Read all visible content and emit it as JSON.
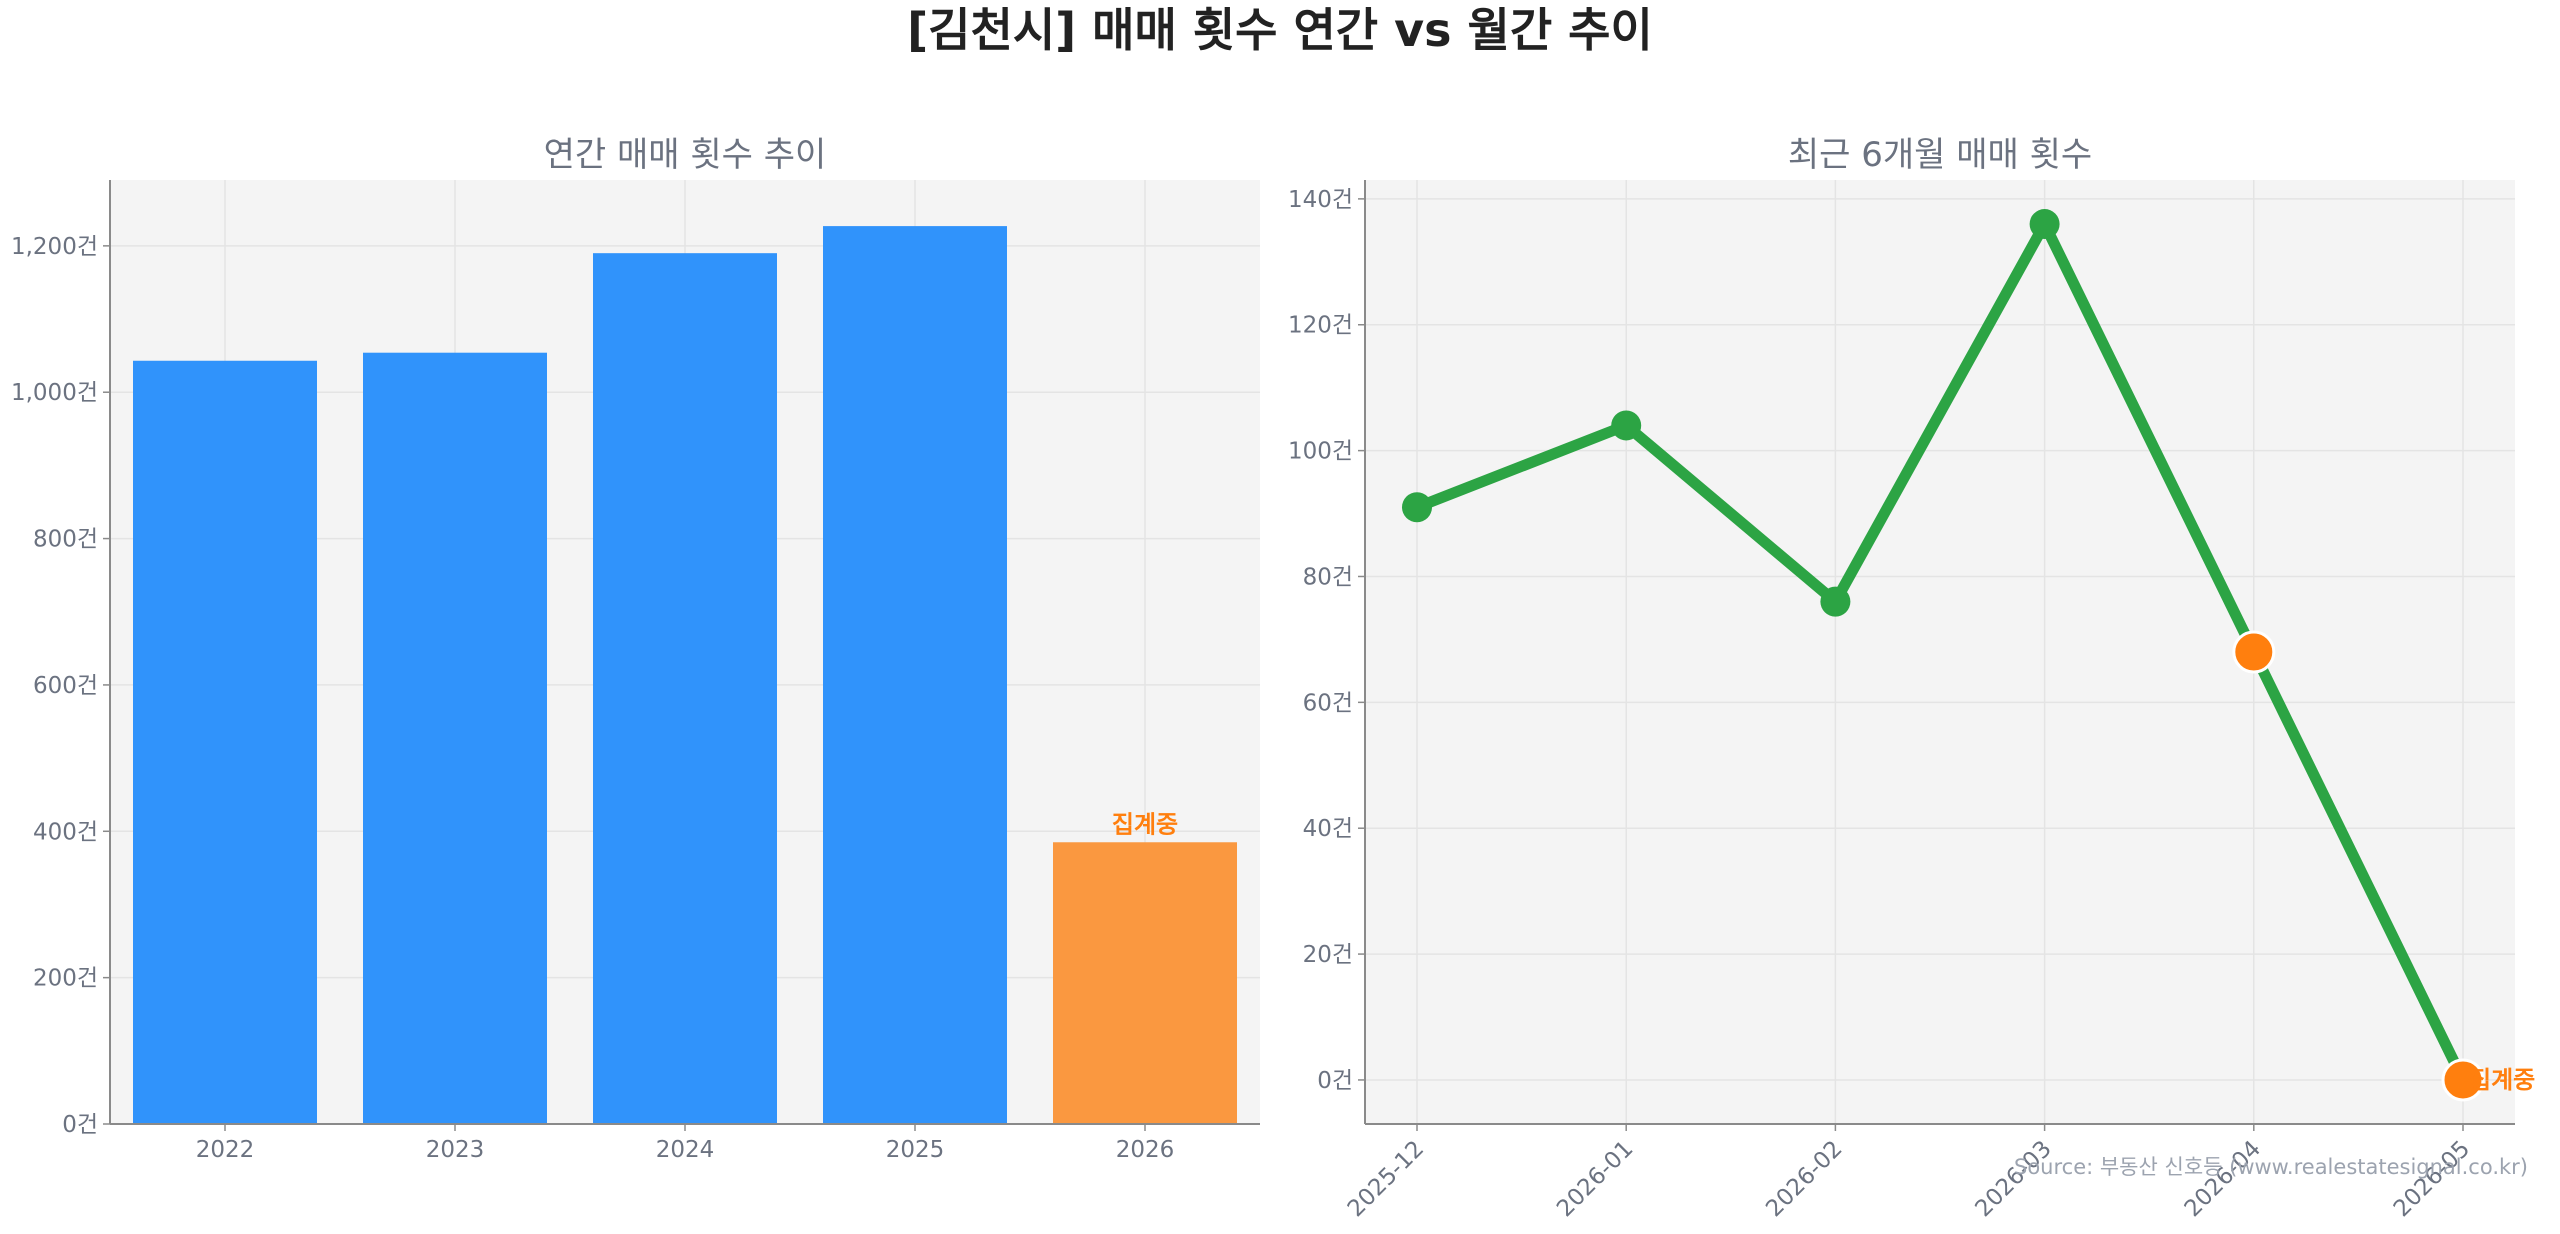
{
  "title": "[김천시] 매매 횟수 연간 vs 월간 추이",
  "source": "Source: 부동산 신호등 (www.realestatesignal.co.kr)",
  "colors": {
    "bar": "#3093fb",
    "bar_pending": "#fa9840",
    "line": "#2ca444",
    "pending_marker": "#ff7f0e",
    "pending_text": "#ff7f0e"
  },
  "chart_data": [
    {
      "type": "bar",
      "title": "연간 매매 횟수 추이",
      "categories": [
        "2022",
        "2023",
        "2024",
        "2025",
        "2026"
      ],
      "values": [
        1043,
        1054,
        1190,
        1227,
        385
      ],
      "ylim": [
        0,
        1290
      ],
      "yticks": [
        0,
        200,
        400,
        600,
        800,
        1000,
        1200
      ],
      "yticklabels": [
        "0건",
        "200건",
        "400건",
        "600건",
        "800건",
        "1,000건",
        "1,200건"
      ],
      "pending_index": 4,
      "pending_label": "집계중",
      "grid": true
    },
    {
      "type": "line",
      "title": "최근 6개월 매매 횟수",
      "categories": [
        "2025-12",
        "2026-01",
        "2026-02",
        "2026-03",
        "2026-04",
        "2026-05"
      ],
      "values": [
        91,
        104,
        76,
        136,
        68,
        0
      ],
      "ylim": [
        -7,
        143
      ],
      "yticks": [
        0,
        20,
        40,
        60,
        80,
        100,
        120,
        140
      ],
      "yticklabels": [
        "0건",
        "20건",
        "40건",
        "60건",
        "80건",
        "100건",
        "120건",
        "140건"
      ],
      "pending_indices": [
        4,
        5
      ],
      "pending_label": "집계중",
      "grid": true
    }
  ]
}
